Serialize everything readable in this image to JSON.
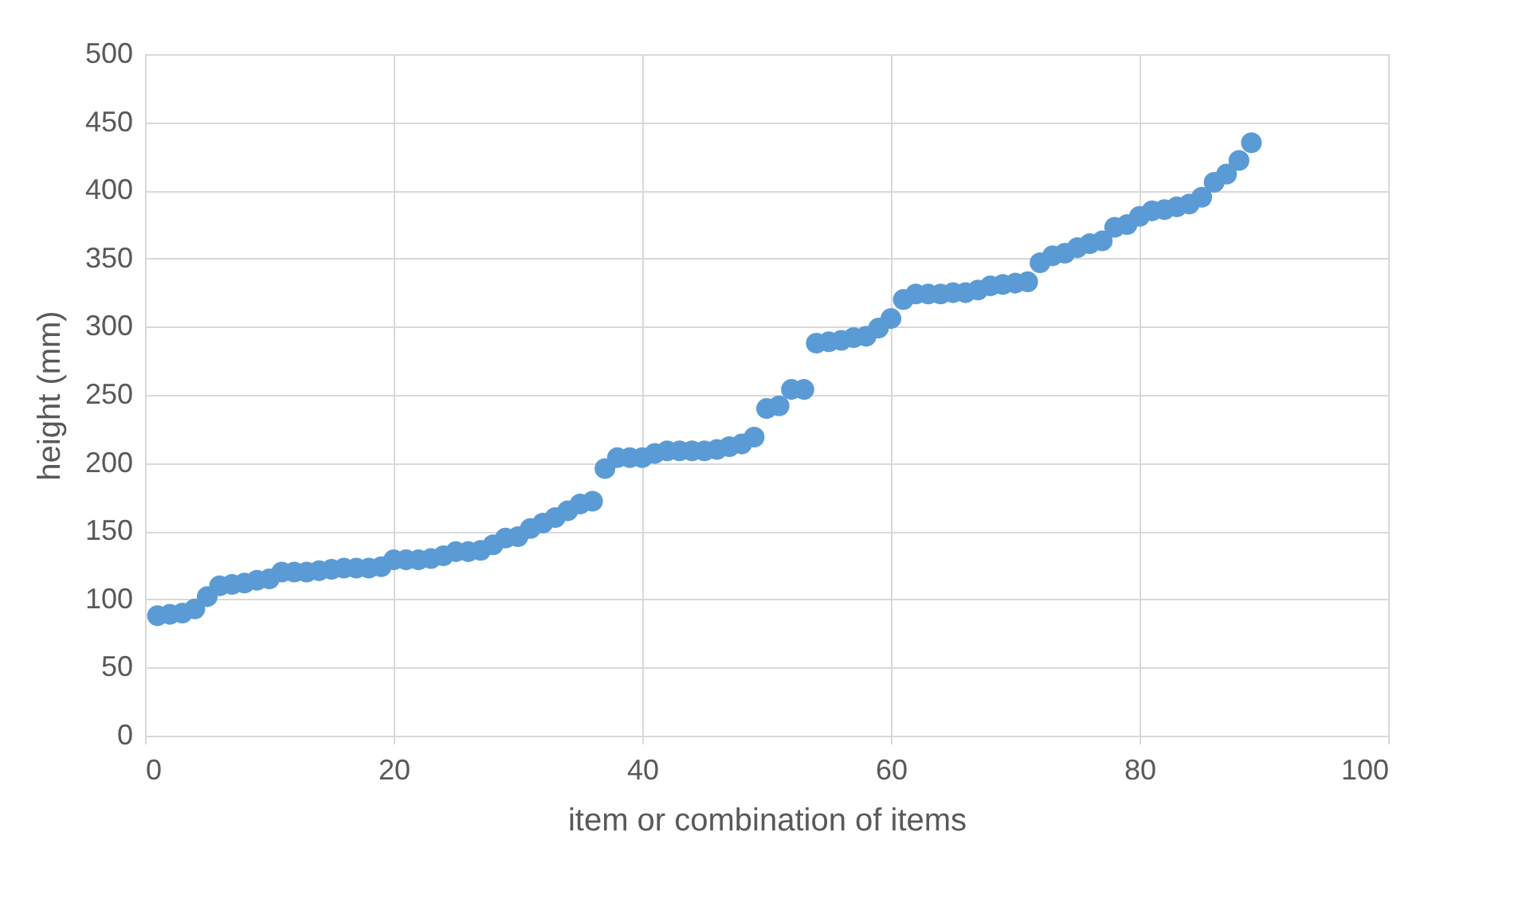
{
  "chart_data": {
    "type": "scatter",
    "xlabel": "item or combination of items",
    "ylabel": "height (mm)",
    "x": [
      1,
      2,
      3,
      4,
      5,
      6,
      7,
      8,
      9,
      10,
      11,
      12,
      13,
      14,
      15,
      16,
      17,
      18,
      19,
      20,
      21,
      22,
      23,
      24,
      25,
      26,
      27,
      28,
      29,
      30,
      31,
      32,
      33,
      34,
      35,
      36,
      37,
      38,
      39,
      40,
      41,
      42,
      43,
      44,
      45,
      46,
      47,
      48,
      49,
      50,
      51,
      52,
      53,
      54,
      55,
      56,
      57,
      58,
      59,
      60,
      61,
      62,
      63,
      64,
      65,
      66,
      67,
      68,
      69,
      70,
      71,
      72,
      73,
      74,
      75,
      76,
      77,
      78,
      79,
      80,
      81,
      82,
      83,
      84,
      85,
      86,
      87,
      88,
      89
    ],
    "series": [
      {
        "color": "#5b9bd5",
        "values": [
          88,
          89,
          90,
          93,
          102,
          110,
          111,
          112,
          114,
          115,
          120,
          120,
          120,
          121,
          122,
          123,
          123,
          123,
          124,
          129,
          129,
          129,
          130,
          132,
          135,
          135,
          136,
          140,
          145,
          146,
          152,
          156,
          160,
          165,
          170,
          172,
          196,
          204,
          204,
          204,
          207,
          209,
          209,
          209,
          209,
          210,
          212,
          214,
          219,
          240,
          242,
          254,
          254,
          288,
          289,
          290,
          292,
          293,
          299,
          306,
          320,
          324,
          324,
          324,
          325,
          325,
          327,
          330,
          331,
          332,
          333,
          347,
          352,
          354,
          358,
          361,
          363,
          373,
          375,
          381,
          385,
          386,
          388,
          390,
          395,
          406,
          412,
          422,
          435
        ]
      }
    ],
    "xlim": [
      0,
      100
    ],
    "xticks": [
      0,
      20,
      40,
      60,
      80,
      100
    ],
    "ylim": [
      0,
      500
    ],
    "yticks": [
      0,
      50,
      100,
      150,
      200,
      250,
      300,
      350,
      400,
      450,
      500
    ],
    "grid": true,
    "marker": "circle",
    "legend": false
  }
}
